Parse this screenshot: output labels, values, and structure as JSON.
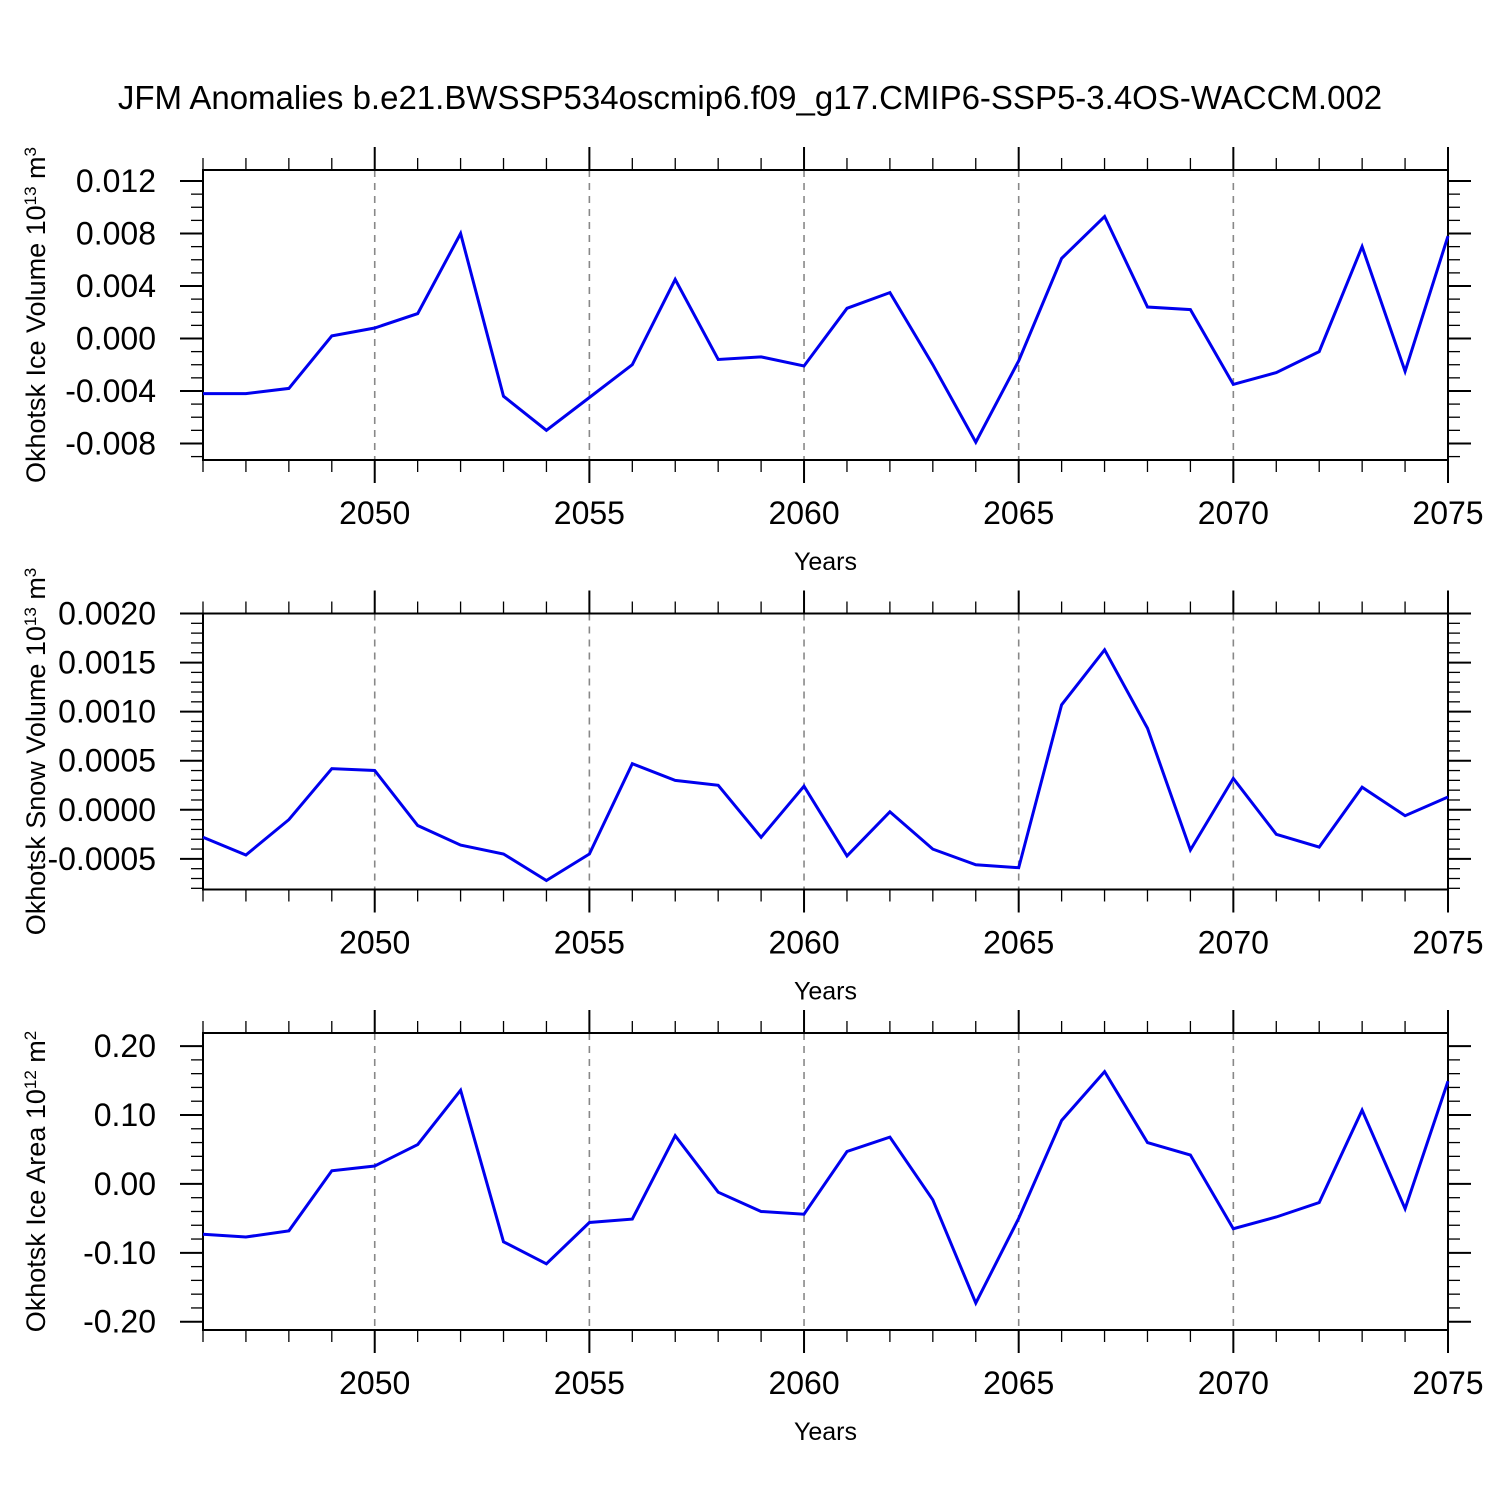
{
  "title": "JFM Anomalies b.e21.BWSSP534oscmip6.f09_g17.CMIP6-SSP5-3.4OS-WACCM.002",
  "colors": {
    "line": "#0000EE",
    "grid": "#888888",
    "axis": "#000000",
    "text": "#000000"
  },
  "chart_data": {
    "type": "line",
    "title": "JFM Anomalies b.e21.BWSSP534oscmip6.f09_g17.CMIP6-SSP5-3.4OS-WACCM.002",
    "xlabel": "Years",
    "legend_position": "none",
    "grid": "vertical-dashed-at-major-x",
    "x": [
      2046,
      2047,
      2048,
      2049,
      2050,
      2051,
      2052,
      2053,
      2054,
      2055,
      2056,
      2057,
      2058,
      2059,
      2060,
      2061,
      2062,
      2063,
      2064,
      2065,
      2066,
      2067,
      2068,
      2069,
      2070,
      2071,
      2072,
      2073,
      2074,
      2075
    ],
    "xlim": [
      2046,
      2075
    ],
    "x_major_ticks": [
      2050,
      2055,
      2060,
      2065,
      2070,
      2075
    ],
    "x_tick_labels": [
      "2050",
      "2055",
      "2060",
      "2065",
      "2070",
      "2075"
    ],
    "x_minor_step": 1,
    "gridlines_x": [
      2050,
      2055,
      2060,
      2065,
      2070
    ],
    "panels": [
      {
        "name": "ice-volume",
        "ylabel_plain": "Okhotsk Ice Volume 10^13 m^3",
        "ylabel_parts": [
          {
            "t": "Okhotsk Ice Volume 10"
          },
          {
            "t": "13",
            "sup": true
          },
          {
            "t": " m"
          },
          {
            "t": "3",
            "sup": true
          }
        ],
        "ylim": [
          -0.00926,
          0.01284
        ],
        "y_minor_step": 0.001,
        "yticks": [
          {
            "v": 0.012,
            "label": "0.012"
          },
          {
            "v": 0.008,
            "label": "0.008"
          },
          {
            "v": 0.004,
            "label": "0.004"
          },
          {
            "v": 0.0,
            "label": "0.000"
          },
          {
            "v": -0.004,
            "label": "-0.004"
          },
          {
            "v": -0.008,
            "label": "-0.008"
          }
        ],
        "values": [
          -0.0042,
          -0.0042,
          -0.0038,
          0.0002,
          0.0008,
          0.0019,
          0.008,
          -0.0044,
          -0.007,
          -0.0045,
          -0.002,
          0.0045,
          -0.0016,
          -0.0014,
          -0.0021,
          0.0023,
          0.0035,
          -0.002,
          -0.0079,
          -0.0017,
          0.0061,
          0.0093,
          0.0024,
          0.0022,
          -0.0035,
          -0.0026,
          -0.001,
          0.007,
          -0.0025,
          0.0078
        ]
      },
      {
        "name": "snow-volume",
        "ylabel_plain": "Okhotsk Snow Volume 10^13 m^3",
        "ylabel_parts": [
          {
            "t": "Okhotsk Snow Volume 10"
          },
          {
            "t": "13",
            "sup": true
          },
          {
            "t": " m"
          },
          {
            "t": "3",
            "sup": true
          }
        ],
        "ylim": [
          -0.000812,
          0.002
        ],
        "y_minor_step": 0.0001,
        "yticks": [
          {
            "v": 0.002,
            "label": "0.0020"
          },
          {
            "v": 0.0015,
            "label": "0.0015"
          },
          {
            "v": 0.001,
            "label": "0.0010"
          },
          {
            "v": 0.0005,
            "label": "0.0005"
          },
          {
            "v": 0.0,
            "label": "0.0000"
          },
          {
            "v": -0.0005,
            "label": "-0.0005"
          }
        ],
        "values": [
          -0.00028,
          -0.00046,
          -0.0001,
          0.00042,
          0.0004,
          -0.00016,
          -0.00036,
          -0.00045,
          -0.00072,
          -0.00045,
          0.00047,
          0.0003,
          0.00025,
          -0.00028,
          0.00024,
          -0.00047,
          -2e-05,
          -0.0004,
          -0.00056,
          -0.00059,
          0.00107,
          0.00163,
          0.00083,
          -0.00041,
          0.00032,
          -0.00025,
          -0.00038,
          0.00023,
          -6e-05,
          0.00013
        ]
      },
      {
        "name": "ice-area",
        "ylabel_plain": "Okhotsk Ice Area 10^12 m^2",
        "ylabel_parts": [
          {
            "t": "Okhotsk Ice Area 10"
          },
          {
            "t": "12",
            "sup": true
          },
          {
            "t": " m"
          },
          {
            "t": "2",
            "sup": true
          }
        ],
        "ylim": [
          -0.212,
          0.219
        ],
        "y_minor_step": 0.02,
        "yticks": [
          {
            "v": 0.2,
            "label": "0.20"
          },
          {
            "v": 0.1,
            "label": "0.10"
          },
          {
            "v": 0.0,
            "label": "0.00"
          },
          {
            "v": -0.1,
            "label": "-0.10"
          },
          {
            "v": -0.2,
            "label": "-0.20"
          }
        ],
        "values": [
          -0.073,
          -0.077,
          -0.068,
          0.019,
          0.026,
          0.057,
          0.136,
          -0.084,
          -0.116,
          -0.056,
          -0.051,
          0.07,
          -0.012,
          -0.04,
          -0.044,
          0.047,
          0.068,
          -0.023,
          -0.173,
          -0.05,
          0.092,
          0.163,
          0.06,
          0.042,
          -0.065,
          -0.048,
          -0.027,
          0.107,
          -0.036,
          0.149
        ]
      }
    ]
  }
}
